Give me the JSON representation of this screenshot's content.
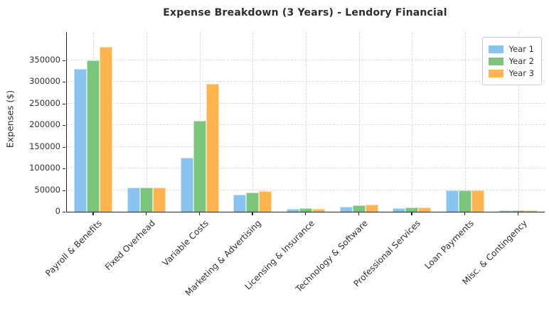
{
  "chart_data": {
    "type": "bar",
    "title": "Expense Breakdown (3 Years) - Lendory Financial",
    "xlabel": "",
    "ylabel": "Expenses ($)",
    "categories": [
      "Payroll & Benefits",
      "Fixed Overhead",
      "Variable Costs",
      "Marketing & Advertising",
      "Licensing & Insurance",
      "Technology & Software",
      "Professional Services",
      "Loan Payments",
      "Misc. & Contingency"
    ],
    "series": [
      {
        "name": "Year 1",
        "color": "#89C4F0",
        "values": [
          330000,
          55000,
          125000,
          40000,
          7000,
          12000,
          8000,
          50000,
          3000
        ]
      },
      {
        "name": "Year 2",
        "color": "#7CC57D",
        "values": [
          350000,
          55000,
          210000,
          44000,
          8000,
          15000,
          10000,
          50000,
          4000
        ]
      },
      {
        "name": "Year 3",
        "color": "#FFB44E",
        "values": [
          380000,
          55000,
          295000,
          47000,
          7000,
          17000,
          10000,
          50000,
          3000
        ]
      }
    ],
    "ylim": [
      0,
      415000
    ],
    "yticks": [
      0,
      50000,
      100000,
      150000,
      200000,
      250000,
      300000,
      350000
    ],
    "grid": true,
    "grid_style": "dashed",
    "legend_position": "upper right",
    "colors": {
      "background": "#ffffff",
      "grid": "#dcdcdc",
      "axis": "#262626",
      "text": "#2e2e2e"
    }
  }
}
